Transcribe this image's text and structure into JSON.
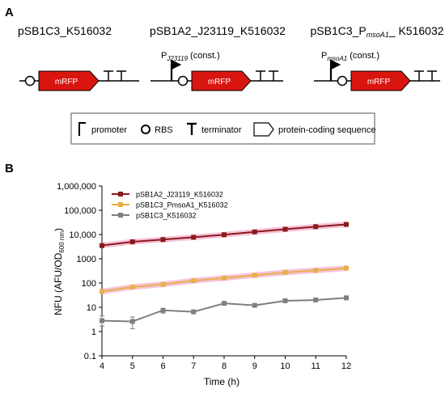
{
  "panel_a": {
    "label": "A",
    "constructs": [
      {
        "name": "pSB1C3_K516032",
        "promoter_label": "",
        "promoter_sub": "",
        "promoter_suffix": "",
        "gene": "mRFP"
      },
      {
        "name": "pSB1A2_J23119_K516032",
        "promoter_label": "P",
        "promoter_sub": "J23119",
        "promoter_suffix": " (const.)",
        "gene": "mRFP"
      },
      {
        "name": "pSB1C3_P",
        "name_sub": "msoA1",
        "name_suffix": "_ K516032",
        "promoter_label": "P",
        "promoter_sub": "msoA1",
        "promoter_suffix": " (const.)",
        "gene": "mRFP"
      }
    ],
    "legend": {
      "promoter": "promoter",
      "rbs": "RBS",
      "terminator": "terminator",
      "cds": "protein-coding sequence"
    }
  },
  "panel_b": {
    "label": "B",
    "ylabel_main": "NFU (AFU/OD",
    "ylabel_sub": "600 nm",
    "ylabel_end": ")",
    "xlabel": "Time (h)"
  },
  "colors": {
    "red_gene": "#d9150f",
    "series_dark_red": "#8b1a1a",
    "series_gold": "#e6b04a",
    "series_gray": "#7f7f7f",
    "error_band": "#f2a3c7"
  },
  "chart_data": {
    "type": "line",
    "x": [
      4,
      5,
      6,
      7,
      8,
      9,
      10,
      11,
      12
    ],
    "xlim": [
      4,
      12
    ],
    "yscale": "log",
    "ylim": [
      0.1,
      1000000
    ],
    "y_ticks": [
      "0.1",
      "1",
      "10",
      "100",
      "1000",
      "10,000",
      "100,000",
      "1,000,000"
    ],
    "x_ticks": [
      "4",
      "5",
      "6",
      "7",
      "8",
      "9",
      "10",
      "11",
      "12"
    ],
    "legend_position": "top-left",
    "series": [
      {
        "name": "pSB1A2_J23119_K516032",
        "values": [
          3500,
          5000,
          6200,
          7700,
          9800,
          12800,
          16500,
          21000,
          26000
        ]
      },
      {
        "name": "pSB1C3_PmsoA1_K516032",
        "values": [
          45,
          68,
          88,
          125,
          160,
          210,
          275,
          330,
          410
        ]
      },
      {
        "name": "pSB1C3_K516032",
        "values": [
          2.8,
          2.6,
          7.5,
          6.5,
          14.5,
          12,
          18.5,
          20,
          24.5
        ]
      }
    ]
  }
}
